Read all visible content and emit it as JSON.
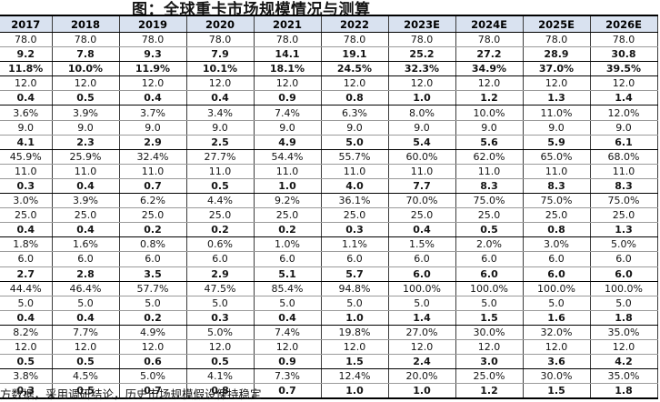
{
  "title": "图：全球重卡市场规模情况与测算",
  "footnote": "方数据，采用调研结论，历史市场规模假设保持稳定",
  "colors": {
    "accent_blue_text": "#6FA8DC",
    "header_background": "#D9E2F0",
    "dark_border": "#000000",
    "light_border": "#9A9A9A",
    "body_text": "#141414"
  },
  "chart_data": {
    "type": "table",
    "title": "图：全球重卡市场规模情况与测算",
    "estimate_columns_start_index": 6,
    "columns": [
      "2017",
      "2018",
      "2019",
      "2020",
      "2021",
      "2022",
      "2023E",
      "2024E",
      "2025E",
      "2026E"
    ],
    "rows": [
      {
        "weight": "normal",
        "color": "blue",
        "values": [
          "78.0",
          "78.0",
          "78.0",
          "78.0",
          "78.0",
          "78.0",
          "78.0",
          "78.0",
          "78.0",
          "78.0"
        ]
      },
      {
        "weight": "bold",
        "color": "black",
        "values": [
          "9.2",
          "7.8",
          "9.3",
          "7.9",
          "14.1",
          "19.1",
          "25.2",
          "27.2",
          "28.9",
          "30.8"
        ]
      },
      {
        "weight": "bold",
        "color": "black",
        "values": [
          "11.8%",
          "10.0%",
          "11.9%",
          "10.1%",
          "18.1%",
          "24.5%",
          "32.3%",
          "34.9%",
          "37.0%",
          "39.5%"
        ]
      },
      {
        "weight": "normal",
        "color": "blue",
        "values": [
          "12.0",
          "12.0",
          "12.0",
          "12.0",
          "12.0",
          "12.0",
          "12.0",
          "12.0",
          "12.0",
          "12.0"
        ]
      },
      {
        "weight": "bold",
        "color": "black",
        "values": [
          "0.4",
          "0.5",
          "0.4",
          "0.4",
          "0.9",
          "0.8",
          "1.0",
          "1.2",
          "1.3",
          "1.4"
        ]
      },
      {
        "weight": "normal",
        "color": "split",
        "values": [
          "3.6%",
          "3.9%",
          "3.7%",
          "3.4%",
          "7.4%",
          "6.3%",
          "8.0%",
          "10.0%",
          "11.0%",
          "12.0%"
        ]
      },
      {
        "weight": "normal",
        "color": "blue",
        "values": [
          "9.0",
          "9.0",
          "9.0",
          "9.0",
          "9.0",
          "9.0",
          "9.0",
          "9.0",
          "9.0",
          "9.0"
        ]
      },
      {
        "weight": "bold",
        "color": "black",
        "values": [
          "4.1",
          "2.3",
          "2.9",
          "2.5",
          "4.9",
          "5.0",
          "5.4",
          "5.6",
          "5.9",
          "6.1"
        ]
      },
      {
        "weight": "normal",
        "color": "split",
        "values": [
          "45.9%",
          "25.9%",
          "32.4%",
          "27.7%",
          "54.4%",
          "55.7%",
          "60.0%",
          "62.0%",
          "65.0%",
          "68.0%"
        ]
      },
      {
        "weight": "normal",
        "color": "blue",
        "values": [
          "11.0",
          "11.0",
          "11.0",
          "11.0",
          "11.0",
          "11.0",
          "11.0",
          "11.0",
          "11.0",
          "11.0"
        ]
      },
      {
        "weight": "bold",
        "color": "black",
        "values": [
          "0.3",
          "0.4",
          "0.7",
          "0.5",
          "1.0",
          "4.0",
          "7.7",
          "8.3",
          "8.3",
          "8.3"
        ]
      },
      {
        "weight": "normal",
        "color": "split",
        "values": [
          "3.0%",
          "3.9%",
          "6.2%",
          "4.4%",
          "9.2%",
          "36.1%",
          "70.0%",
          "75.0%",
          "75.0%",
          "75.0%"
        ]
      },
      {
        "weight": "normal",
        "color": "blue",
        "values": [
          "25.0",
          "25.0",
          "25.0",
          "25.0",
          "25.0",
          "25.0",
          "25.0",
          "25.0",
          "25.0",
          "25.0"
        ]
      },
      {
        "weight": "bold",
        "color": "black",
        "values": [
          "0.4",
          "0.4",
          "0.2",
          "0.2",
          "0.2",
          "0.3",
          "0.4",
          "0.5",
          "0.8",
          "1.3"
        ]
      },
      {
        "weight": "normal",
        "color": "split",
        "values": [
          "1.8%",
          "1.6%",
          "0.8%",
          "0.6%",
          "1.0%",
          "1.1%",
          "1.5%",
          "2.0%",
          "3.0%",
          "5.0%"
        ]
      },
      {
        "weight": "normal",
        "color": "blue",
        "values": [
          "6.0",
          "6.0",
          "6.0",
          "6.0",
          "6.0",
          "6.0",
          "6.0",
          "6.0",
          "6.0",
          "6.0"
        ]
      },
      {
        "weight": "bold",
        "color": "black",
        "values": [
          "2.7",
          "2.8",
          "3.5",
          "2.9",
          "5.1",
          "5.7",
          "6.0",
          "6.0",
          "6.0",
          "6.0"
        ]
      },
      {
        "weight": "normal",
        "color": "split",
        "values": [
          "44.4%",
          "46.4%",
          "57.7%",
          "47.5%",
          "85.4%",
          "94.8%",
          "100.0%",
          "100.0%",
          "100.0%",
          "100.0%"
        ]
      },
      {
        "weight": "normal",
        "color": "blue",
        "values": [
          "5.0",
          "5.0",
          "5.0",
          "5.0",
          "5.0",
          "5.0",
          "5.0",
          "5.0",
          "5.0",
          "5.0"
        ]
      },
      {
        "weight": "bold",
        "color": "black",
        "values": [
          "0.4",
          "0.4",
          "0.2",
          "0.3",
          "0.4",
          "1.0",
          "1.4",
          "1.5",
          "1.6",
          "1.8"
        ]
      },
      {
        "weight": "normal",
        "color": "split",
        "values": [
          "8.2%",
          "7.7%",
          "4.9%",
          "5.0%",
          "7.4%",
          "19.8%",
          "27.0%",
          "30.0%",
          "32.0%",
          "35.0%"
        ]
      },
      {
        "weight": "normal",
        "color": "blue",
        "values": [
          "12.0",
          "12.0",
          "12.0",
          "12.0",
          "12.0",
          "12.0",
          "12.0",
          "12.0",
          "12.0",
          "12.0"
        ]
      },
      {
        "weight": "bold",
        "color": "black",
        "values": [
          "0.5",
          "0.5",
          "0.6",
          "0.5",
          "0.9",
          "1.5",
          "2.4",
          "3.0",
          "3.6",
          "4.2"
        ]
      },
      {
        "weight": "normal",
        "color": "split",
        "values": [
          "3.8%",
          "4.5%",
          "5.0%",
          "4.1%",
          "7.3%",
          "12.4%",
          "20.0%",
          "25.0%",
          "30.0%",
          "35.0%"
        ]
      },
      {
        "weight": "bold",
        "color": "split",
        "values": [
          "0.3",
          "0.5",
          "0.7",
          "0.8",
          "0.7",
          "1.0",
          "1.0",
          "1.2",
          "1.5",
          "1.8"
        ]
      }
    ]
  }
}
